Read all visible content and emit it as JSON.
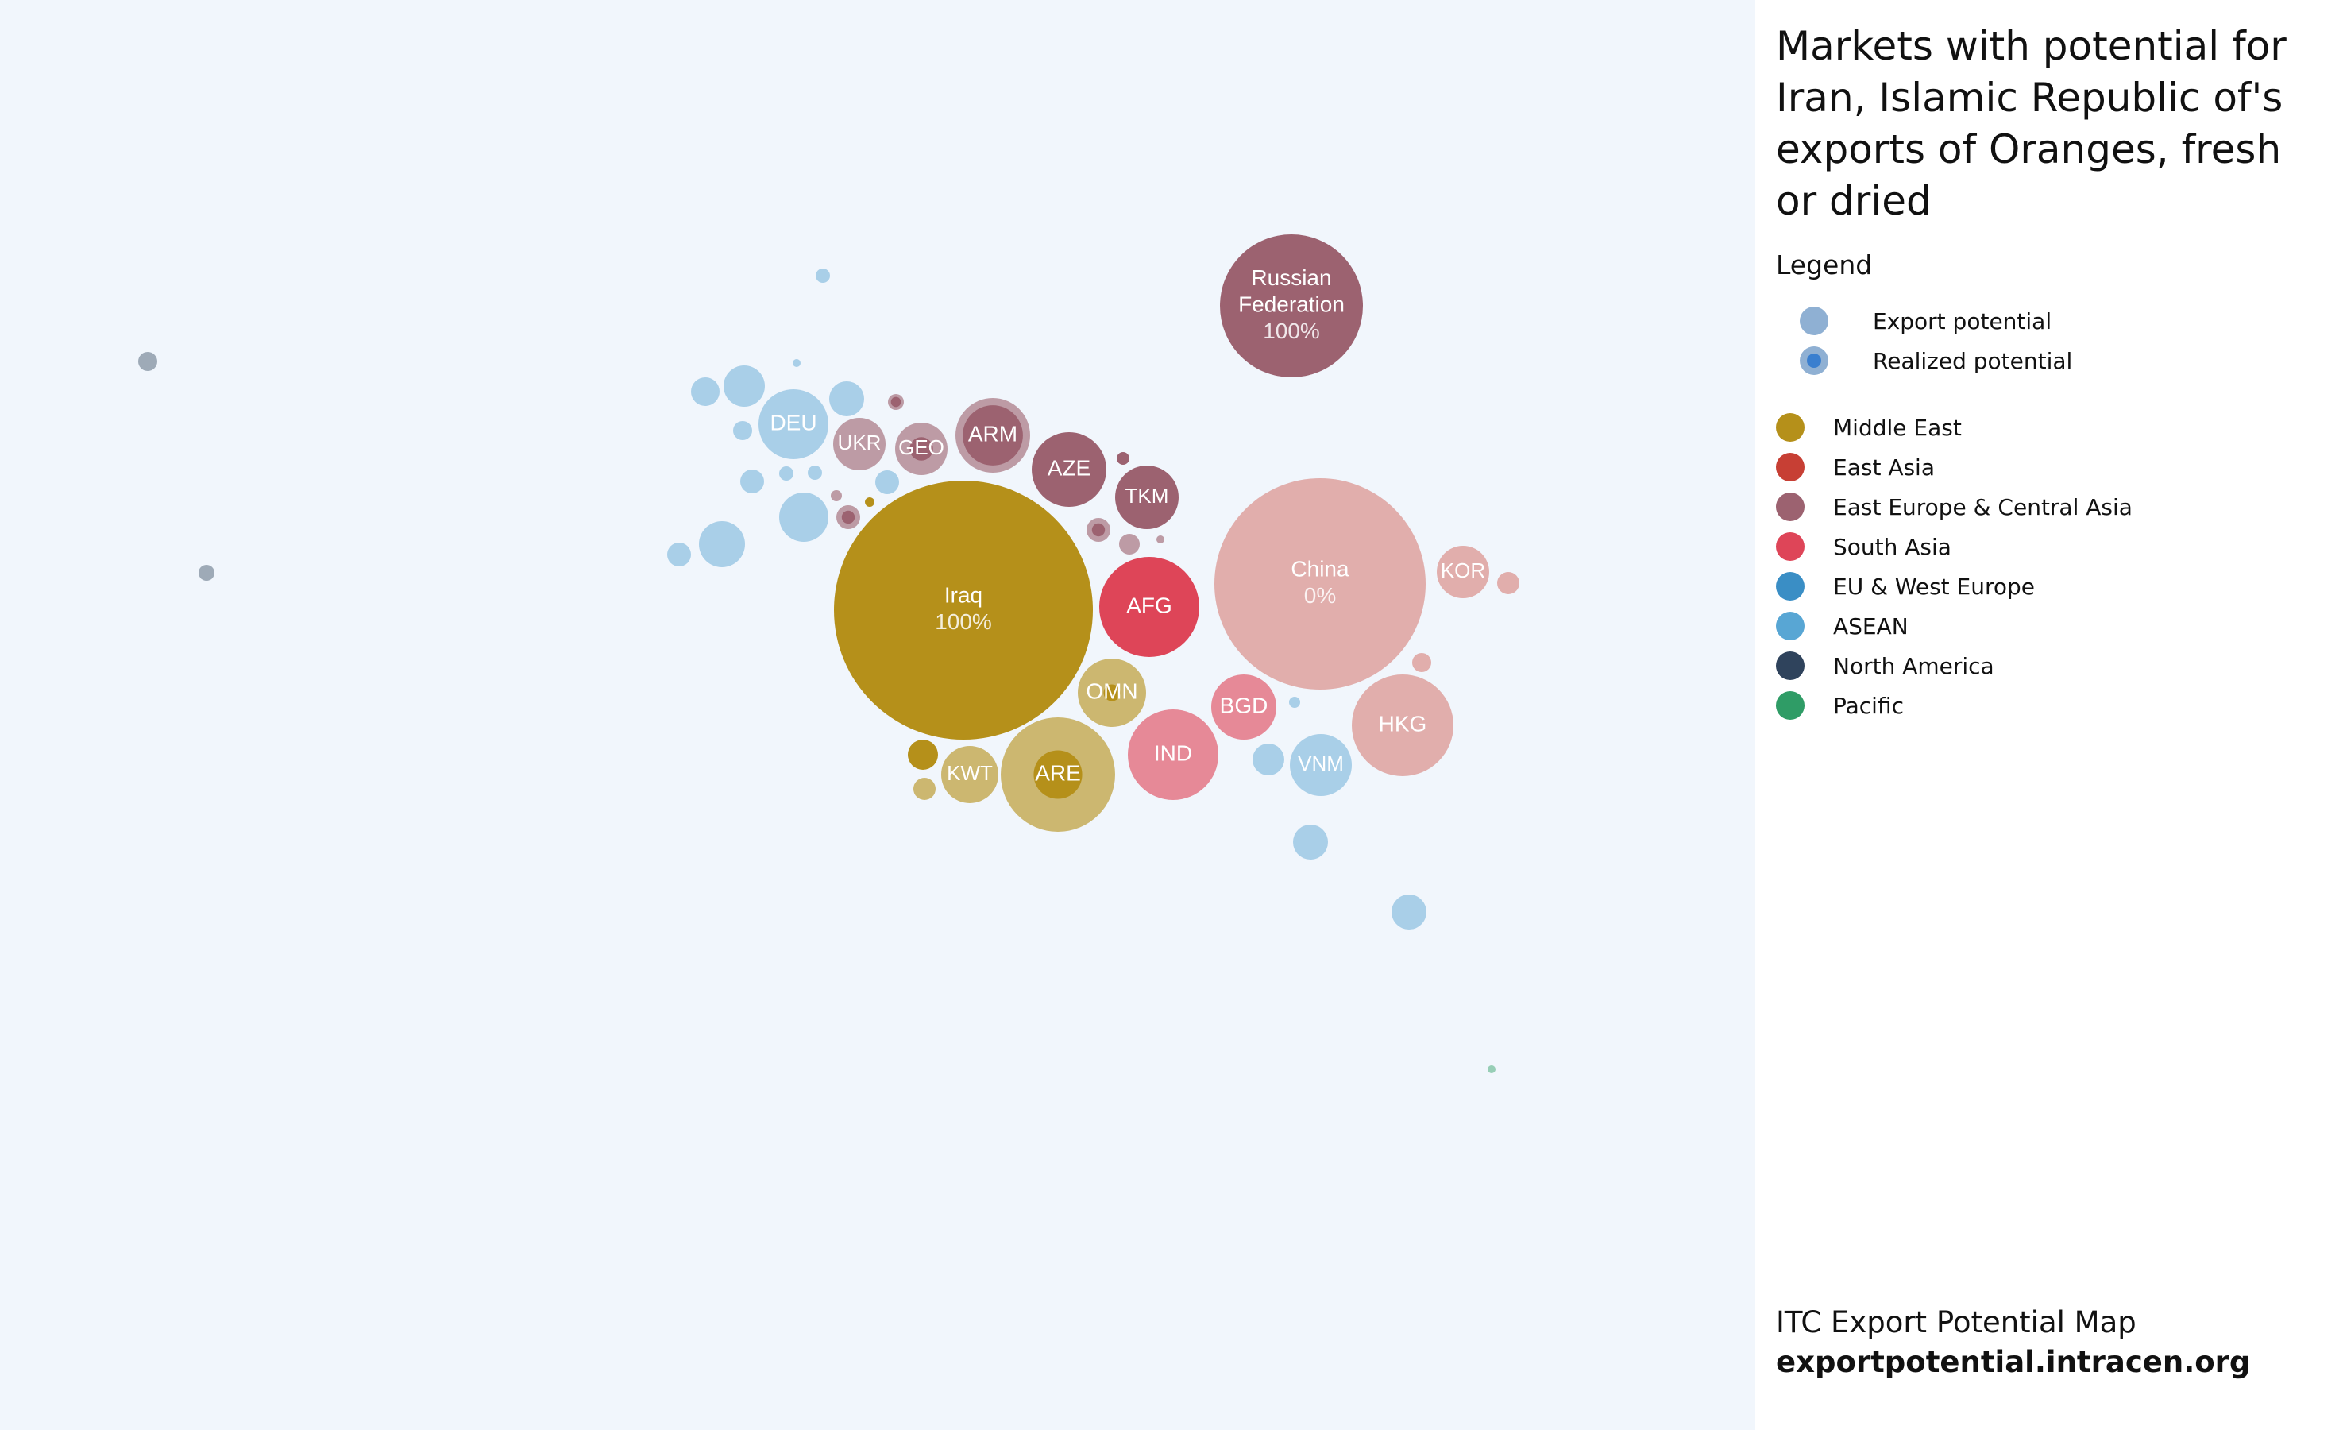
{
  "title": "Markets with potential for Iran, Islamic Republic of's exports of Oranges, fresh or dried",
  "legend": {
    "heading": "Legend",
    "export_potential": "Export potential",
    "realized_potential": "Realized potential",
    "regions": [
      {
        "name": "Middle East",
        "color": "#b5901a"
      },
      {
        "name": "East Asia",
        "color": "#c73f34"
      },
      {
        "name": "East Europe & Central Asia",
        "color": "#9c6270"
      },
      {
        "name": "South Asia",
        "color": "#de4558"
      },
      {
        "name": "EU & West Europe",
        "color": "#3a8ec5"
      },
      {
        "name": "ASEAN",
        "color": "#58a6d4"
      },
      {
        "name": "North America",
        "color": "#2f435c"
      },
      {
        "name": "Pacific",
        "color": "#2f9c66"
      }
    ]
  },
  "footer": {
    "line1": "ITC Export Potential Map",
    "line2": "exportpotential.intracen.org"
  },
  "chart_data": {
    "type": "bubble-map",
    "note_values": "size = relative export potential; realized = share of potential already realized (fraction)",
    "markets": [
      {
        "label": "Iraq",
        "region": "Middle East",
        "potential": 100,
        "realized": 1.0,
        "realized_text": "100%"
      },
      {
        "label": "China",
        "region": "East Asia",
        "potential": 65,
        "realized": 0.0,
        "realized_text": "0%"
      },
      {
        "label": "Russian Federation",
        "region": "East Europe & Central Asia",
        "potential": 29,
        "realized": 1.0,
        "realized_text": "100%"
      },
      {
        "label": "ARE",
        "region": "Middle East",
        "potential": 19,
        "realized": 0.18
      },
      {
        "label": "IND",
        "region": "South Asia",
        "potential": 11.5
      },
      {
        "label": "AFG",
        "region": "South Asia",
        "potential": 14.5,
        "realized": 1.0
      },
      {
        "label": "HKG",
        "region": "East Asia",
        "potential": 14.8
      },
      {
        "label": "ARM",
        "region": "East Europe & Central Asia",
        "potential": 8.8,
        "realized": 0.65
      },
      {
        "label": "AZE",
        "region": "East Europe & Central Asia",
        "potential": 7.7,
        "realized": 1.0
      },
      {
        "label": "DEU",
        "region": "ASEAN",
        "potential": 7.2
      },
      {
        "label": "OMN",
        "region": "Middle East",
        "potential": 7.0,
        "realized": 0.06
      },
      {
        "label": "TKM",
        "region": "East Europe & Central Asia",
        "potential": 6.0,
        "realized": 1.0
      },
      {
        "label": "VNM",
        "region": "ASEAN",
        "potential": 5.5
      },
      {
        "label": "BGD",
        "region": "South Asia",
        "potential": 5.7
      },
      {
        "label": "KWT",
        "region": "Middle East",
        "potential": 4.9
      },
      {
        "label": "KOR",
        "region": "East Asia",
        "potential": 4.4
      },
      {
        "label": "UKR",
        "region": "East Europe & Central Asia",
        "potential": 4.3
      },
      {
        "label": "GEO",
        "region": "East Europe & Central Asia",
        "potential": 4.3,
        "realized": 0.2
      },
      {
        "label": "",
        "region": "ASEAN",
        "potential": 3.8
      },
      {
        "label": "",
        "region": "ASEAN",
        "potential": 3.3
      },
      {
        "label": "",
        "region": "ASEAN",
        "potential": 2.0
      },
      {
        "label": "",
        "region": "ASEAN",
        "potential": 1.6
      },
      {
        "label": "",
        "region": "ASEAN",
        "potential": 1.7
      },
      {
        "label": "",
        "region": "ASEAN",
        "potential": 1.6
      },
      {
        "label": "",
        "region": "ASEAN",
        "potential": 0.9
      },
      {
        "label": "",
        "region": "ASEAN",
        "potential": 0.9
      },
      {
        "label": "",
        "region": "ASEAN",
        "potential": 0.8
      },
      {
        "label": "",
        "region": "ASEAN",
        "potential": 0.6
      },
      {
        "label": "",
        "region": "ASEAN",
        "potential": 0.6
      },
      {
        "label": "",
        "region": "ASEAN",
        "potential": 0.4
      },
      {
        "label": "",
        "region": "ASEAN",
        "potential": 0.4
      },
      {
        "label": "",
        "region": "ASEAN",
        "potential": 0.3
      },
      {
        "label": "",
        "region": "ASEAN",
        "potential": 0.1
      },
      {
        "label": "",
        "region": "ASEAN",
        "potential": 0.3
      },
      {
        "label": "",
        "region": "ASEAN",
        "potential": 1.1
      },
      {
        "label": "",
        "region": "Middle East",
        "potential": 1.1,
        "realized": 1.0
      },
      {
        "label": "",
        "region": "Middle East",
        "potential": 0.7
      },
      {
        "label": "",
        "region": "Middle East",
        "potential": 0.2,
        "realized": 1.0
      },
      {
        "label": "",
        "region": "East Europe & Central Asia",
        "potential": 1.6,
        "realized": 0.3
      },
      {
        "label": "",
        "region": "East Europe & Central Asia",
        "potential": 0.8,
        "realized": 0.3
      },
      {
        "label": "",
        "region": "East Europe & Central Asia",
        "potential": 0.7
      },
      {
        "label": "",
        "region": "East Europe & Central Asia",
        "potential": 0.4,
        "realized": 0.4
      },
      {
        "label": "",
        "region": "East Europe & Central Asia",
        "potential": 0.2,
        "realized": 1.0
      },
      {
        "label": "",
        "region": "East Europe & Central Asia",
        "potential": 0.2
      },
      {
        "label": "",
        "region": "East Europe & Central Asia",
        "potential": 0.1
      },
      {
        "label": "",
        "region": "East Asia",
        "potential": 0.8
      },
      {
        "label": "",
        "region": "East Asia",
        "potential": 0.5
      },
      {
        "label": "",
        "region": "North America",
        "potential": 0.6
      },
      {
        "label": "",
        "region": "North America",
        "potential": 0.5
      },
      {
        "label": "",
        "region": "Pacific",
        "potential": 0.1
      }
    ]
  }
}
